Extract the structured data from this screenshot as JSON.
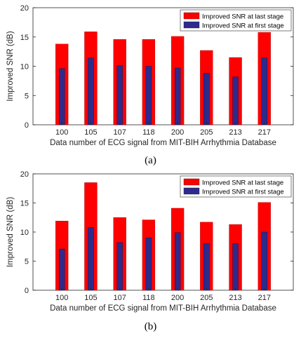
{
  "chart_data": [
    {
      "type": "bar",
      "caption": "(a)",
      "categories": [
        "100",
        "105",
        "107",
        "118",
        "200",
        "205",
        "213",
        "217"
      ],
      "series": [
        {
          "name": "Improved SNR at last stage",
          "color": "#ff0000",
          "values": [
            13.8,
            15.9,
            14.6,
            14.6,
            15.1,
            12.7,
            11.5,
            15.8
          ]
        },
        {
          "name": "Improved SNR at first stage",
          "color": "#2e2a8c",
          "values": [
            9.6,
            11.4,
            10.1,
            10.0,
            9.7,
            8.8,
            8.2,
            11.4
          ]
        }
      ],
      "xlabel": "Data number of ECG signal from MIT-BIH Arrhythmia Database",
      "ylabel": "Improved SNR (dB)",
      "ylim": [
        0,
        20
      ],
      "yticks": [
        0,
        5,
        10,
        15,
        20
      ],
      "legend": "top-right",
      "grid": false
    },
    {
      "type": "bar",
      "caption": "(b)",
      "categories": [
        "100",
        "105",
        "107",
        "118",
        "200",
        "205",
        "213",
        "217"
      ],
      "series": [
        {
          "name": "Improved SNR at last stage",
          "color": "#ff0000",
          "values": [
            11.9,
            18.5,
            12.5,
            12.1,
            14.1,
            11.7,
            11.3,
            15.1
          ]
        },
        {
          "name": "Improved SNR at first stage",
          "color": "#2e2a8c",
          "values": [
            7.1,
            10.8,
            8.2,
            9.0,
            9.9,
            8.0,
            8.0,
            10.0
          ]
        }
      ],
      "xlabel": "Data number of ECG signal from MIT-BIH Arrhythmia Database",
      "ylabel": "Improved SNR (dB)",
      "ylim": [
        0,
        20
      ],
      "yticks": [
        0,
        5,
        10,
        15,
        20
      ],
      "legend": "top-right",
      "grid": false
    }
  ]
}
